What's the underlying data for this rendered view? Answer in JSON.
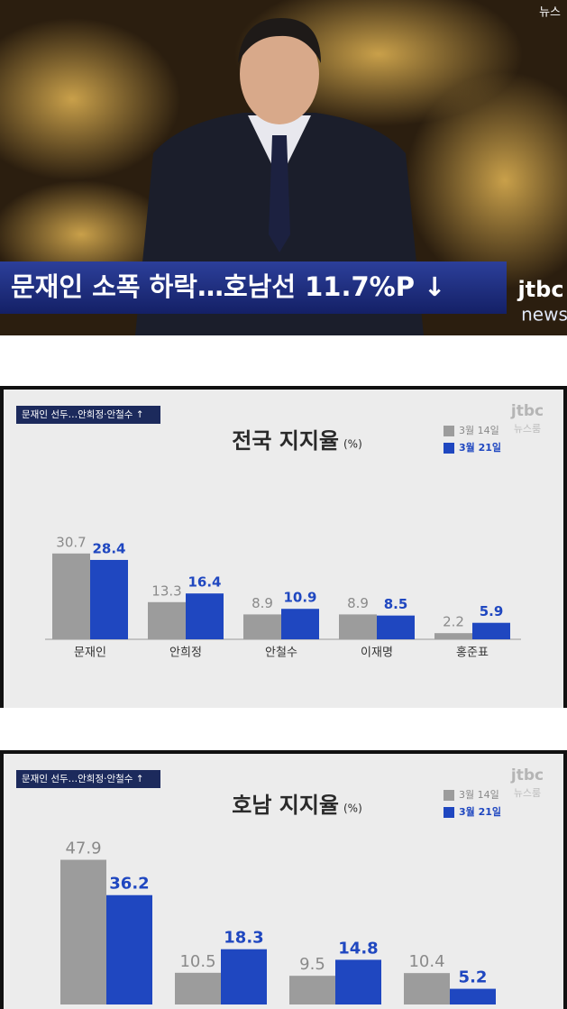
{
  "broadcast": {
    "corner": "뉴스",
    "caption": "문재인 소폭 하락…호남선 11.7%P ↓",
    "logo": "jtbc",
    "logo_sub": "news"
  },
  "chart_data": [
    {
      "type": "bar",
      "title": "전국 지지율",
      "unit": "(%)",
      "badge": "문재인 선두…안희정·안철수 ↑",
      "logo": "jtbc",
      "logo_sub": "뉴스룸",
      "categories": [
        "문재인",
        "안희정",
        "안철수",
        "이재명",
        "홍준표"
      ],
      "series": [
        {
          "name": "3월 14일",
          "color": "#9c9c9c",
          "values": [
            30.7,
            13.3,
            8.9,
            8.9,
            2.2
          ]
        },
        {
          "name": "3월 21일",
          "color": "#1f47c0",
          "values": [
            28.4,
            16.4,
            10.9,
            8.5,
            5.9
          ]
        }
      ]
    },
    {
      "type": "bar",
      "title": "호남 지지율",
      "unit": "(%)",
      "badge": "문재인 선두…안희정·안철수 ↑",
      "logo": "jtbc",
      "logo_sub": "뉴스룸",
      "categories": [
        null,
        null,
        null,
        null
      ],
      "series": [
        {
          "name": "3월 14일",
          "color": "#9c9c9c",
          "values": [
            47.9,
            10.5,
            9.5,
            10.4
          ]
        },
        {
          "name": "3월 21일",
          "color": "#1f47c0",
          "values": [
            36.2,
            18.3,
            14.8,
            5.2
          ]
        }
      ]
    }
  ]
}
